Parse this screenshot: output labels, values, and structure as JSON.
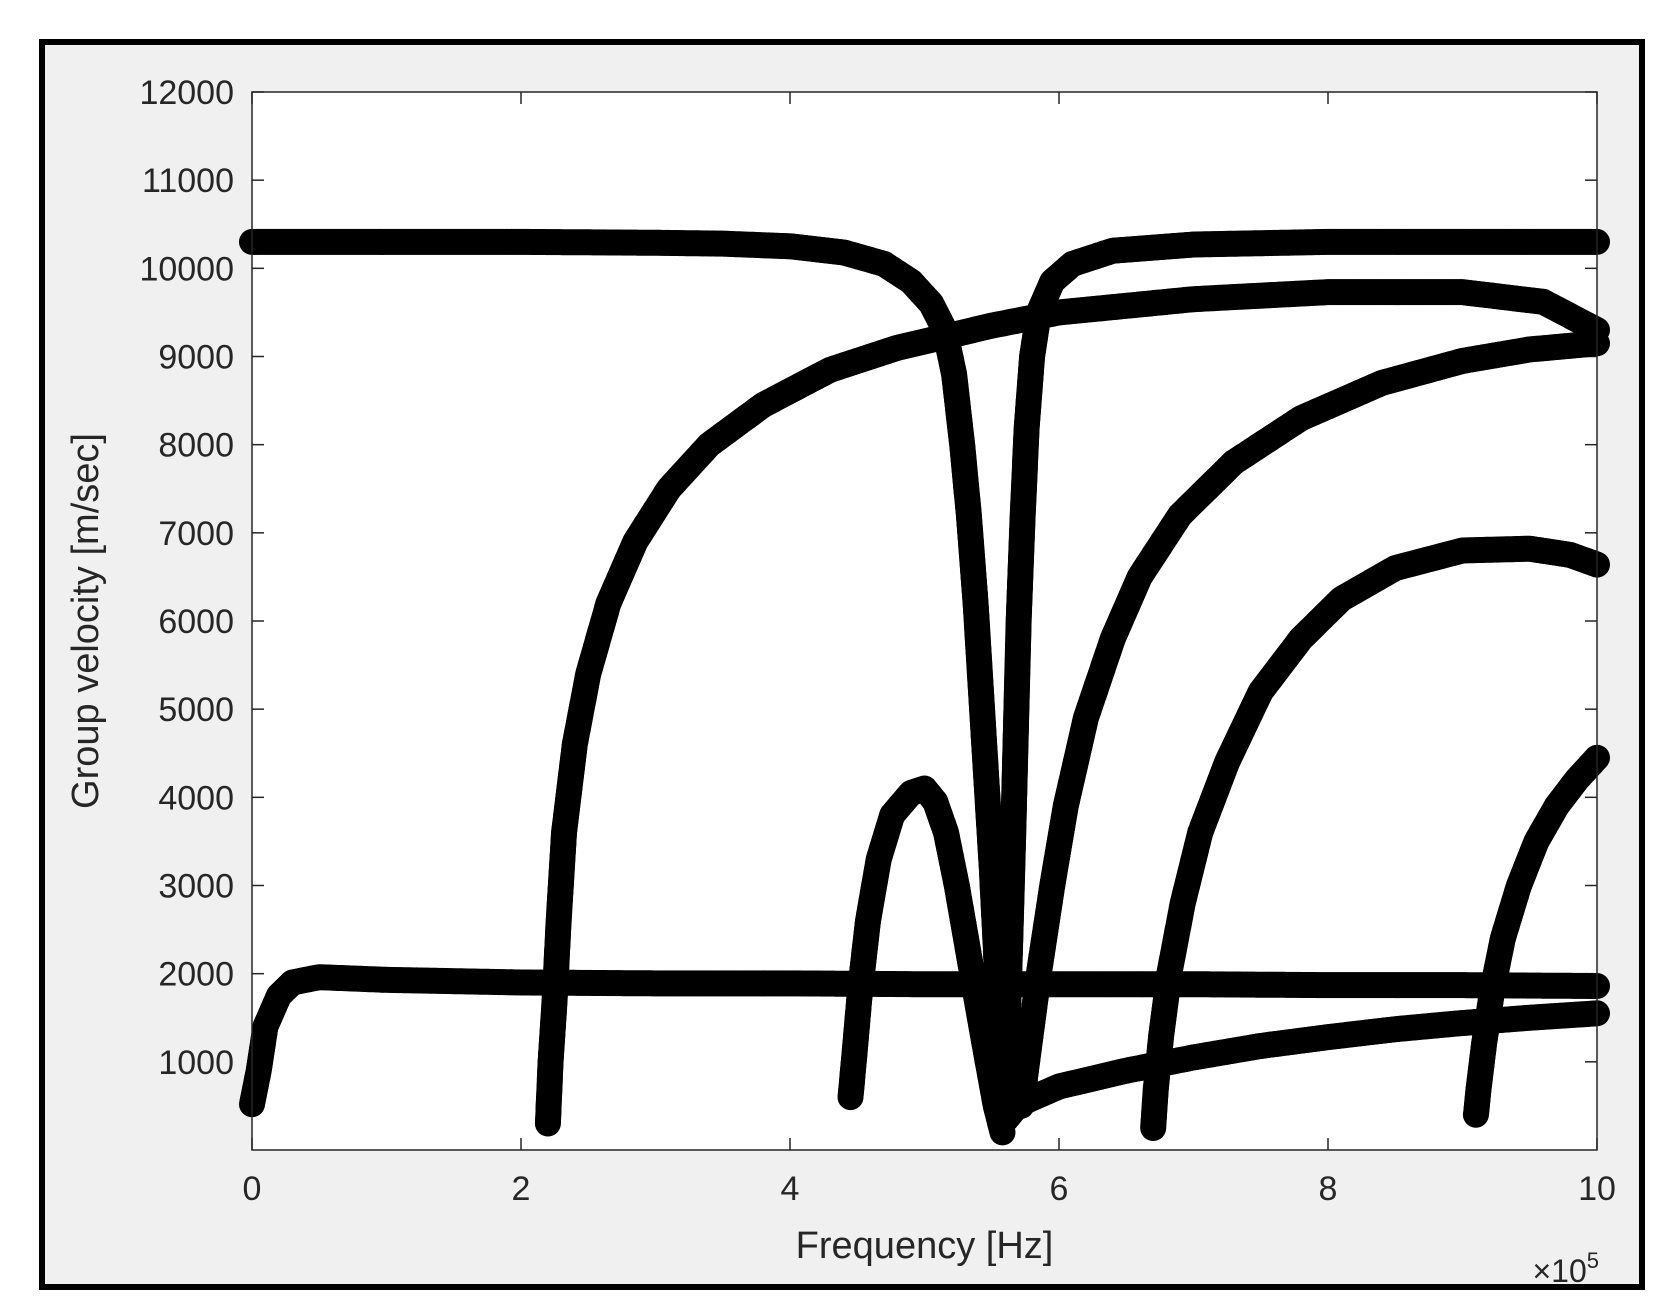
{
  "chart_data": {
    "type": "scatter",
    "title": "",
    "xlabel": "Frequency [Hz]",
    "ylabel": "Group velocity [m/sec]",
    "x_exponent_label": "×10",
    "x_exponent_power": "5",
    "xlim": [
      0,
      10
    ],
    "ylim": [
      0,
      12000
    ],
    "x_scale_factor": 100000,
    "xticks": [
      "0",
      "2",
      "4",
      "6",
      "8",
      "10"
    ],
    "yticks": [
      "1000",
      "2000",
      "3000",
      "4000",
      "5000",
      "6000",
      "7000",
      "8000",
      "9000",
      "10000",
      "11000",
      "12000"
    ],
    "grid": false,
    "legend": "none",
    "marker_color": "#000000",
    "background_color": "#f0f0f0",
    "axes_color": "#ffffff",
    "series": [
      {
        "values": [
          [
            0,
            10300
          ],
          [
            1,
            10300
          ],
          [
            2,
            10300
          ],
          [
            3,
            10290
          ],
          [
            3.5,
            10280
          ],
          [
            4,
            10250
          ],
          [
            4.4,
            10180
          ],
          [
            4.7,
            10050
          ],
          [
            4.9,
            9850
          ],
          [
            5.05,
            9600
          ],
          [
            5.15,
            9300
          ],
          [
            5.22,
            8800
          ],
          [
            5.28,
            8000
          ],
          [
            5.33,
            7200
          ],
          [
            5.38,
            6200
          ],
          [
            5.42,
            5200
          ],
          [
            5.46,
            4200
          ],
          [
            5.5,
            3200
          ],
          [
            5.53,
            2300
          ],
          [
            5.55,
            1500
          ],
          [
            5.57,
            700
          ],
          [
            5.58,
            300
          ],
          [
            5.6,
            700
          ],
          [
            5.62,
            1500
          ],
          [
            5.64,
            2500
          ],
          [
            5.66,
            3600
          ],
          [
            5.68,
            4800
          ],
          [
            5.7,
            6000
          ],
          [
            5.73,
            7200
          ],
          [
            5.76,
            8200
          ],
          [
            5.8,
            9000
          ],
          [
            5.85,
            9500
          ],
          [
            5.95,
            9850
          ],
          [
            6.1,
            10050
          ],
          [
            6.4,
            10200
          ],
          [
            7,
            10270
          ],
          [
            8,
            10300
          ],
          [
            9,
            10300
          ],
          [
            10,
            10300
          ]
        ]
      },
      {
        "values": [
          [
            0,
            520
          ],
          [
            0.05,
            900
          ],
          [
            0.1,
            1400
          ],
          [
            0.2,
            1750
          ],
          [
            0.3,
            1900
          ],
          [
            0.5,
            1960
          ],
          [
            1,
            1930
          ],
          [
            2,
            1900
          ],
          [
            3,
            1890
          ],
          [
            4,
            1890
          ],
          [
            5,
            1880
          ],
          [
            6,
            1880
          ],
          [
            7,
            1880
          ],
          [
            8,
            1870
          ],
          [
            9,
            1870
          ],
          [
            10,
            1860
          ]
        ]
      },
      {
        "values": [
          [
            2.2,
            300
          ],
          [
            2.22,
            1000
          ],
          [
            2.25,
            1700
          ],
          [
            2.28,
            2600
          ],
          [
            2.32,
            3600
          ],
          [
            2.4,
            4600
          ],
          [
            2.5,
            5400
          ],
          [
            2.65,
            6200
          ],
          [
            2.85,
            6900
          ],
          [
            3.1,
            7500
          ],
          [
            3.4,
            8000
          ],
          [
            3.8,
            8450
          ],
          [
            4.3,
            8850
          ],
          [
            4.8,
            9100
          ],
          [
            5.5,
            9350
          ],
          [
            6,
            9500
          ],
          [
            7,
            9650
          ],
          [
            8,
            9730
          ],
          [
            9,
            9730
          ],
          [
            9.6,
            9620
          ],
          [
            10,
            9300
          ]
        ]
      },
      {
        "values": [
          [
            4.45,
            600
          ],
          [
            4.48,
            1100
          ],
          [
            4.52,
            1800
          ],
          [
            4.58,
            2600
          ],
          [
            4.66,
            3300
          ],
          [
            4.76,
            3800
          ],
          [
            4.9,
            4050
          ],
          [
            5.0,
            4100
          ],
          [
            5.08,
            3950
          ],
          [
            5.16,
            3600
          ],
          [
            5.24,
            3000
          ],
          [
            5.32,
            2300
          ],
          [
            5.4,
            1600
          ],
          [
            5.47,
            1000
          ],
          [
            5.53,
            500
          ],
          [
            5.58,
            200
          ]
        ]
      },
      {
        "values": [
          [
            5.58,
            300
          ],
          [
            5.7,
            520
          ],
          [
            6,
            720
          ],
          [
            6.5,
            900
          ],
          [
            7,
            1050
          ],
          [
            7.5,
            1180
          ],
          [
            8,
            1280
          ],
          [
            8.5,
            1370
          ],
          [
            9,
            1440
          ],
          [
            9.5,
            1500
          ],
          [
            10,
            1550
          ]
        ]
      },
      {
        "values": [
          [
            5.72,
            500
          ],
          [
            5.78,
            1200
          ],
          [
            5.85,
            2000
          ],
          [
            5.95,
            3000
          ],
          [
            6.05,
            3900
          ],
          [
            6.2,
            4900
          ],
          [
            6.4,
            5800
          ],
          [
            6.6,
            6500
          ],
          [
            6.9,
            7200
          ],
          [
            7.3,
            7800
          ],
          [
            7.8,
            8300
          ],
          [
            8.4,
            8700
          ],
          [
            9,
            8950
          ],
          [
            9.5,
            9080
          ],
          [
            10,
            9150
          ]
        ]
      },
      {
        "values": [
          [
            6.7,
            250
          ],
          [
            6.72,
            700
          ],
          [
            6.76,
            1300
          ],
          [
            6.82,
            2000
          ],
          [
            6.92,
            2800
          ],
          [
            7.05,
            3600
          ],
          [
            7.25,
            4400
          ],
          [
            7.5,
            5200
          ],
          [
            7.8,
            5800
          ],
          [
            8.1,
            6250
          ],
          [
            8.5,
            6600
          ],
          [
            9,
            6800
          ],
          [
            9.5,
            6820
          ],
          [
            9.8,
            6750
          ],
          [
            10,
            6640
          ]
        ]
      },
      {
        "values": [
          [
            9.1,
            400
          ],
          [
            9.12,
            700
          ],
          [
            9.16,
            1200
          ],
          [
            9.22,
            1800
          ],
          [
            9.3,
            2400
          ],
          [
            9.42,
            3000
          ],
          [
            9.55,
            3500
          ],
          [
            9.7,
            3900
          ],
          [
            9.85,
            4200
          ],
          [
            10,
            4450
          ]
        ]
      }
    ]
  }
}
